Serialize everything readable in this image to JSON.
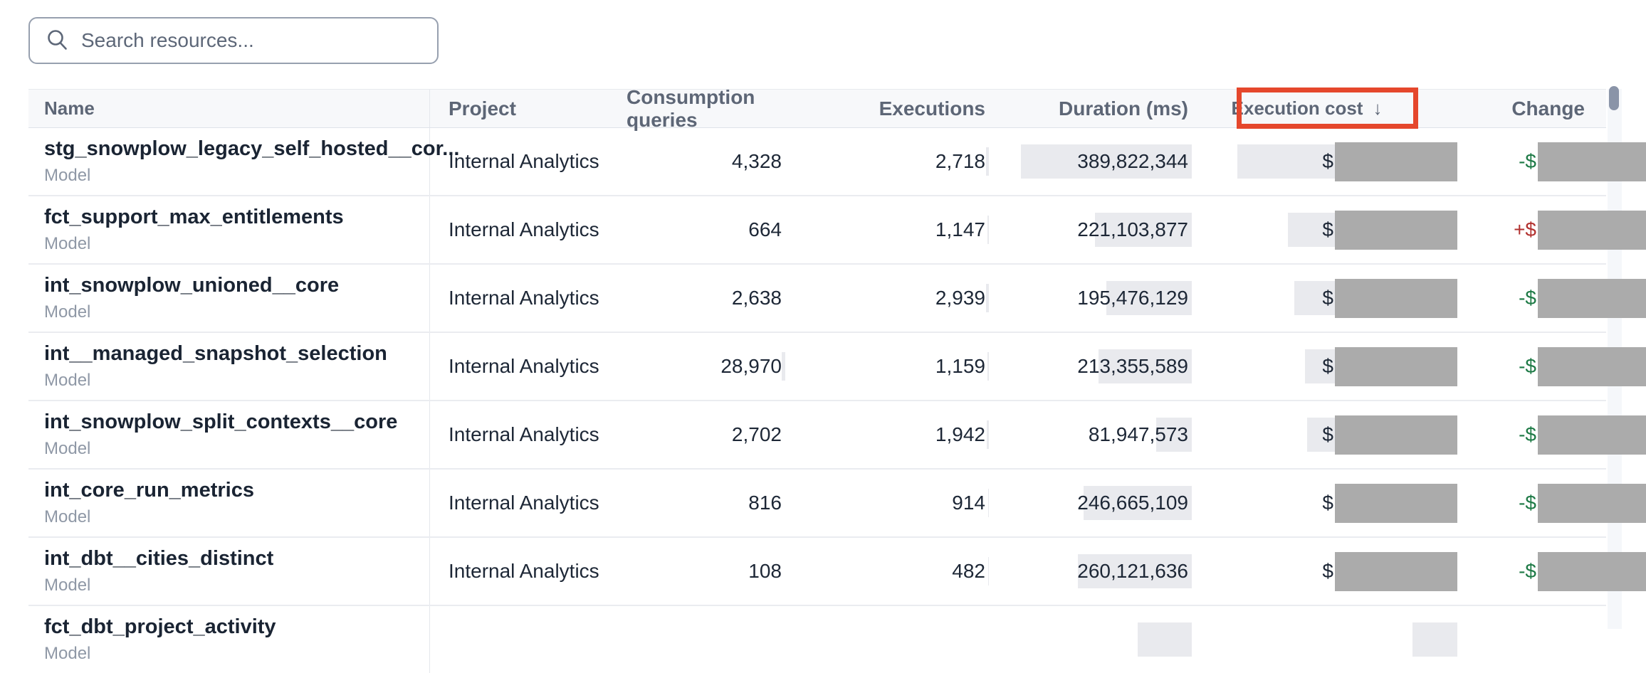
{
  "search": {
    "placeholder": "Search resources..."
  },
  "table": {
    "columns": [
      {
        "id": "name",
        "label": "Name"
      },
      {
        "id": "project",
        "label": "Project"
      },
      {
        "id": "consumption",
        "label": "Consumption queries"
      },
      {
        "id": "executions",
        "label": "Executions"
      },
      {
        "id": "duration",
        "label": "Duration (ms)"
      },
      {
        "id": "cost",
        "label": "Execution cost",
        "sort_arrow": "↓",
        "highlighted": true
      },
      {
        "id": "change",
        "label": "Change"
      }
    ],
    "rows": [
      {
        "name": "stg_snowplow_legacy_self_hosted__cor...",
        "type": "Model",
        "project": "Internal Analytics",
        "consumption": "4,328",
        "executions": "2,718",
        "duration": "389,822,344",
        "cost_prefix": "$",
        "cost_redacted": true,
        "cost_bar": 137,
        "cost_bar_bg": true,
        "change_prefix": "-$",
        "change_dir": "down",
        "change_redacted": true
      },
      {
        "name": "fct_support_max_entitlements",
        "type": "Model",
        "project": "Internal Analytics",
        "consumption": "664",
        "executions": "1,147",
        "duration": "221,103,877",
        "cost_prefix": "$",
        "cost_redacted": true,
        "cost_bar": 66,
        "cost_bar_bg": true,
        "change_prefix": "+$",
        "change_dir": "up",
        "change_redacted": true
      },
      {
        "name": "int_snowplow_unioned__core",
        "type": "Model",
        "project": "Internal Analytics",
        "consumption": "2,638",
        "executions": "2,939",
        "duration": "195,476,129",
        "cost_prefix": "$",
        "cost_redacted": true,
        "cost_bar": 57,
        "cost_bar_bg": true,
        "change_prefix": "-$",
        "change_dir": "down",
        "change_redacted": true
      },
      {
        "name": "int__managed_snapshot_selection",
        "type": "Model",
        "project": "Internal Analytics",
        "consumption": "28,970",
        "executions": "1,159",
        "duration": "213,355,589",
        "cost_prefix": "$",
        "cost_redacted": true,
        "cost_bar": 42,
        "cost_bar_bg": true,
        "change_prefix": "-$",
        "change_dir": "down",
        "change_redacted": true
      },
      {
        "name": "int_snowplow_split_contexts__core",
        "type": "Model",
        "project": "Internal Analytics",
        "consumption": "2,702",
        "executions": "1,942",
        "duration": "81,947,573",
        "cost_prefix": "$",
        "cost_redacted": true,
        "cost_bar": 39,
        "cost_bar_bg": true,
        "change_prefix": "-$",
        "change_dir": "down",
        "change_redacted": true
      },
      {
        "name": "int_core_run_metrics",
        "type": "Model",
        "project": "Internal Analytics",
        "consumption": "816",
        "executions": "914",
        "duration": "246,665,109",
        "cost_prefix": "$",
        "cost_redacted": true,
        "cost_bar": 24,
        "cost_bar_bg": false,
        "change_prefix": "-$",
        "change_dir": "down",
        "change_redacted": true
      },
      {
        "name": "int_dbt__cities_distinct",
        "type": "Model",
        "project": "Internal Analytics",
        "consumption": "108",
        "executions": "482",
        "duration": "260,121,636",
        "cost_prefix": "$",
        "cost_redacted": true,
        "cost_bar": 24,
        "cost_bar_bg": false,
        "change_prefix": "-$",
        "change_dir": "down",
        "change_redacted": true
      },
      {
        "name": "fct_dbt_project_activity",
        "type": "Model",
        "partial": true,
        "duration_bar_stub": 76,
        "cost_bar_stub": 63
      }
    ]
  },
  "annotation": {
    "target": "Execution cost",
    "color": "#e5472c"
  },
  "colors": {
    "change_down": "#1e7a46",
    "change_up": "#b23230",
    "redaction": "#ababab",
    "bar": "#e9eaee",
    "annotation_red": "#e5472c"
  }
}
